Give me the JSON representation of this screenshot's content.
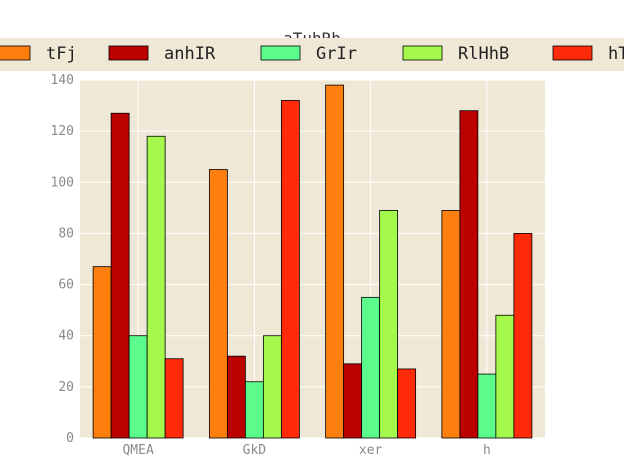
{
  "chart_data": {
    "type": "bar",
    "title": "aTuhRh",
    "xlabel": "",
    "ylabel": "",
    "categories": [
      "QMEA",
      "GkD",
      "xer",
      "h"
    ],
    "ylim": [
      0,
      140
    ],
    "yticks": [
      0,
      20,
      40,
      60,
      80,
      100,
      120,
      140
    ],
    "grid": true,
    "legend_position": "top",
    "background_color": "#efe8d6",
    "series": [
      {
        "name": "tFj",
        "color": "#ff7f0e",
        "values": [
          67,
          105,
          138,
          89
        ]
      },
      {
        "name": "anhIR",
        "color": "#bb0000",
        "values": [
          127,
          32,
          29,
          128
        ]
      },
      {
        "name": "GrIr",
        "color": "#5cfc8c",
        "values": [
          40,
          22,
          55,
          25
        ]
      },
      {
        "name": "RlHhB",
        "color": "#a4f94c",
        "values": [
          118,
          40,
          89,
          48
        ]
      },
      {
        "name": "hT",
        "color": "#ff2a0a",
        "values": [
          31,
          132,
          27,
          80
        ]
      }
    ]
  }
}
